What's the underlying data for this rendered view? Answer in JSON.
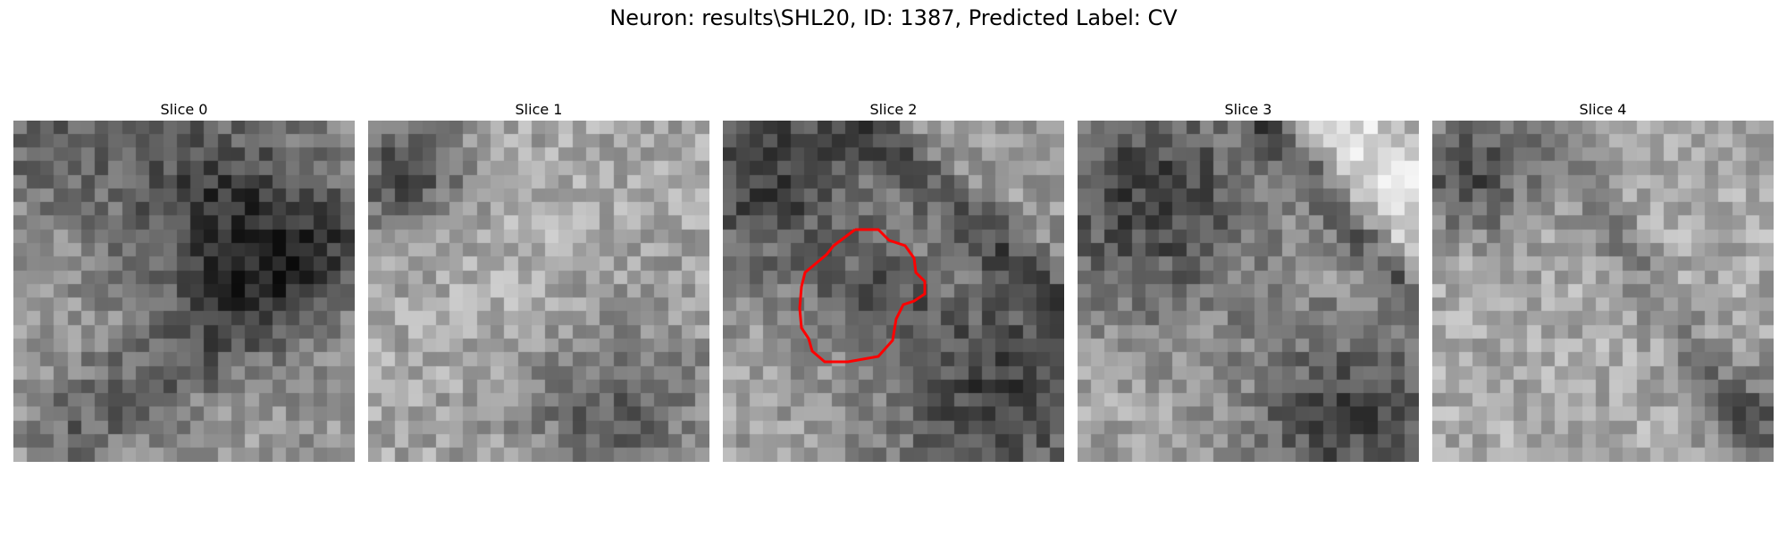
{
  "figure": {
    "title": "Neuron: results\\SHL20, ID: 1387, Predicted Label: CV"
  },
  "panels": [
    {
      "title": "Slice 0",
      "has_contour": false
    },
    {
      "title": "Slice 1",
      "has_contour": false
    },
    {
      "title": "Slice 2",
      "has_contour": true
    },
    {
      "title": "Slice 3",
      "has_contour": false
    },
    {
      "title": "Slice 4",
      "has_contour": false
    }
  ],
  "colors": {
    "contour": "#ff0000",
    "background": "#ffffff"
  }
}
